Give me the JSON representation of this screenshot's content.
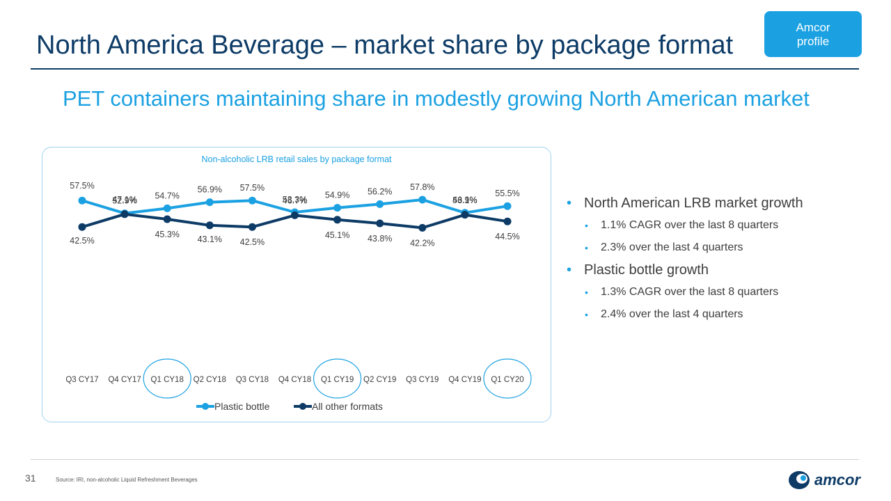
{
  "header": {
    "title": "North America Beverage – market share by package format",
    "badge_line1": "Amcor",
    "badge_line2": "profile"
  },
  "subtitle": "PET containers maintaining share in modestly growing North American market",
  "chart_data": {
    "type": "line",
    "title": "Non-alcoholic LRB retail sales by package format",
    "categories": [
      "Q3 CY17",
      "Q4 CY17",
      "Q1 CY18",
      "Q2 CY18",
      "Q3 CY18",
      "Q4 CY18",
      "Q1 CY19",
      "Q2 CY19",
      "Q3 CY19",
      "Q4 CY19",
      "Q1 CY20"
    ],
    "series": [
      {
        "name": "Plastic bottle",
        "color": "#1ba1e2",
        "values": [
          57.5,
          52.9,
          54.7,
          56.9,
          57.5,
          53.3,
          54.9,
          56.2,
          57.8,
          53.1,
          55.5
        ],
        "labels": [
          "57.5%",
          "52.9%",
          "54.7%",
          "56.9%",
          "57.5%",
          "53.3%",
          "54.9%",
          "56.2%",
          "57.8%",
          "53.1%",
          "55.5%"
        ]
      },
      {
        "name": "All other formats",
        "color": "#0d3b66",
        "values": [
          42.5,
          47.1,
          45.3,
          43.1,
          42.5,
          46.7,
          45.1,
          43.8,
          42.2,
          46.9,
          44.5
        ],
        "labels": [
          "42.5%",
          "47.1%",
          "45.3%",
          "43.1%",
          "42.5%",
          "46.7%",
          "45.1%",
          "43.8%",
          "42.2%",
          "46.9%",
          "44.5%"
        ]
      }
    ],
    "highlighted_categories": [
      "Q1 CY18",
      "Q1 CY19",
      "Q1 CY20"
    ],
    "legend_position": "bottom",
    "grid": false
  },
  "bullets": [
    {
      "text": "North American LRB market growth",
      "level": 1
    },
    {
      "text": "1.1% CAGR over the last 8 quarters",
      "level": 2
    },
    {
      "text": "2.3% over the last 4 quarters",
      "level": 2
    },
    {
      "text": "Plastic bottle growth",
      "level": 1
    },
    {
      "text": "1.3% CAGR over the last 8 quarters",
      "level": 2
    },
    {
      "text": "2.4% over the last 4 quarters",
      "level": 2
    }
  ],
  "footer": {
    "page_number": "31",
    "source": "Source: IRI, non-alcoholic Liquid Refreshment Beverages",
    "logo_text": "amcor"
  },
  "colors": {
    "navy": "#0d3b66",
    "accent": "#1ba1e2"
  }
}
